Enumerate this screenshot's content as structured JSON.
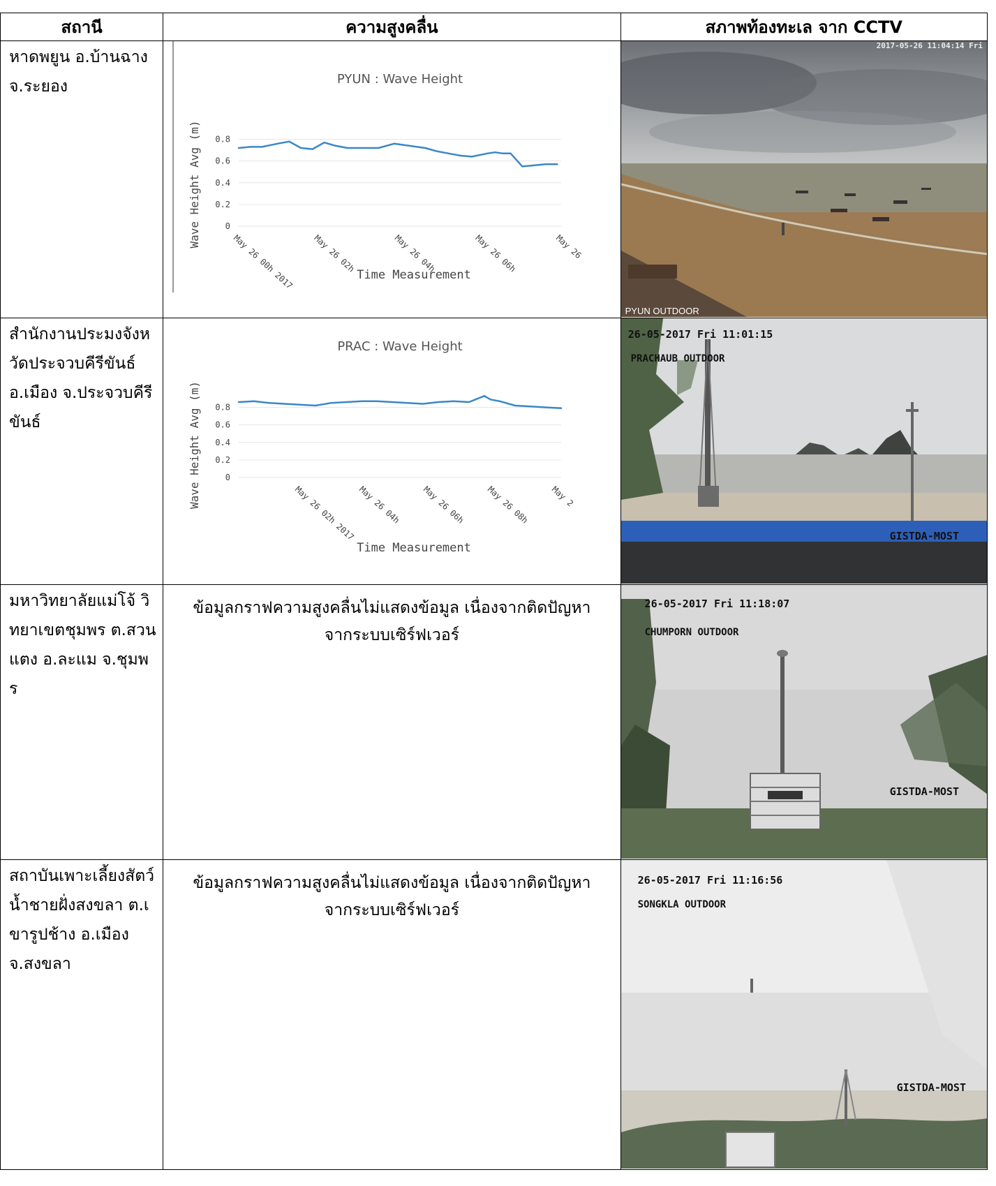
{
  "table": {
    "headers": [
      "สถานี",
      "ความสูงคลื่น",
      "สภาพท้องทะเล จาก CCTV"
    ],
    "rows": [
      {
        "station": "หาดพยูน อ.บ้านฉาง จ.ระยอง",
        "camera": {
          "timestamp": "2017-05-26 11:04:14 Fri",
          "label": "PYUN OUTDOOR",
          "watermark": ""
        }
      },
      {
        "station": "สำนักงานประมงจังหวัดประจวบคีรีขันธ์ อ.เมือง จ.ประจวบคีรีขันธ์",
        "camera": {
          "timestamp": "26-05-2017 Fri 11:01:15",
          "label": "PRACHAUB OUTDOOR",
          "watermark": "GISTDA-MOST"
        }
      },
      {
        "station": "มหาวิทยาลัยแม่โจ้ วิทยาเขตชุมพร ต.สวนแตง อ.ละแม จ.ชุมพร",
        "graph_note": "ข้อมูลกราฟความสูงคลื่นไม่แสดงข้อมูล เนื่องจากติดปัญหาจากระบบเซิร์ฟเวอร์",
        "camera": {
          "timestamp": "26-05-2017 Fri 11:18:07",
          "label": "CHUMPORN OUTDOOR",
          "watermark": "GISTDA-MOST"
        }
      },
      {
        "station": "สถาบันเพาะเลี้ยงสัตว์น้ำชายฝั่งสงขลา ต.เขารูปช้าง อ.เมือง จ.สงขลา",
        "graph_note": "ข้อมูลกราฟความสูงคลื่นไม่แสดงข้อมูล เนื่องจากติดปัญหาจากระบบเซิร์ฟเวอร์",
        "camera": {
          "timestamp": "26-05-2017 Fri 11:16:56",
          "label": "SONGKLA OUTDOOR",
          "watermark": "GISTDA-MOST"
        }
      }
    ]
  },
  "chart_data": [
    {
      "type": "line",
      "title": "PYUN : Wave Height",
      "xlabel": "Time Measurement",
      "ylabel": "Wave Height Avg (m)",
      "ylim": [
        0,
        0.9
      ],
      "yticks": [
        "0",
        "0.2",
        "0.4",
        "0.6",
        "0.8"
      ],
      "xticks": [
        "May 26 00h 2017",
        "May 26 02h",
        "May 26 04h",
        "May 26 06h",
        "May 26"
      ],
      "xrange_hours": [
        0,
        8.3
      ],
      "grid": true,
      "series": [
        {
          "color": "#3a87c8",
          "x": [
            0,
            0.3,
            0.6,
            1.0,
            1.3,
            1.6,
            1.9,
            2.2,
            2.5,
            2.8,
            3.2,
            3.6,
            4.0,
            4.4,
            4.8,
            5.1,
            5.4,
            5.7,
            6.0,
            6.4,
            6.6,
            6.8,
            7.0,
            7.3,
            7.6,
            7.9,
            8.2
          ],
          "y": [
            0.72,
            0.73,
            0.73,
            0.76,
            0.78,
            0.72,
            0.71,
            0.77,
            0.74,
            0.72,
            0.72,
            0.72,
            0.76,
            0.74,
            0.72,
            0.69,
            0.67,
            0.65,
            0.64,
            0.67,
            0.68,
            0.67,
            0.67,
            0.55,
            0.56,
            0.57,
            0.57
          ]
        }
      ]
    },
    {
      "type": "line",
      "title": "PRAC : Wave Height",
      "xlabel": "Time Measurement",
      "ylabel": "Wave Height Avg (m)",
      "ylim": [
        0,
        0.9
      ],
      "yticks": [
        "0",
        "0.2",
        "0.4",
        "0.6",
        "0.8"
      ],
      "xticks": [
        "May 26 02h 2017",
        "May 26 04h",
        "May 26 06h",
        "May 26 08h",
        "May 2"
      ],
      "xrange_hours": [
        0,
        10.5
      ],
      "grid": true,
      "series": [
        {
          "color": "#3a87c8",
          "x": [
            0,
            0.5,
            1.0,
            1.5,
            2.0,
            2.5,
            3.0,
            3.5,
            4.0,
            4.5,
            5.0,
            5.5,
            6.0,
            6.5,
            7.0,
            7.5,
            8.0,
            8.2,
            8.5,
            9.0,
            9.5,
            10.0,
            10.5
          ],
          "y": [
            0.86,
            0.87,
            0.85,
            0.84,
            0.83,
            0.82,
            0.85,
            0.86,
            0.87,
            0.87,
            0.86,
            0.85,
            0.84,
            0.86,
            0.87,
            0.86,
            0.93,
            0.89,
            0.87,
            0.82,
            0.81,
            0.8,
            0.79
          ]
        }
      ]
    }
  ],
  "colors": {
    "line": "#3a87c8",
    "grid": "#e6e6e6",
    "title": "#555555"
  }
}
